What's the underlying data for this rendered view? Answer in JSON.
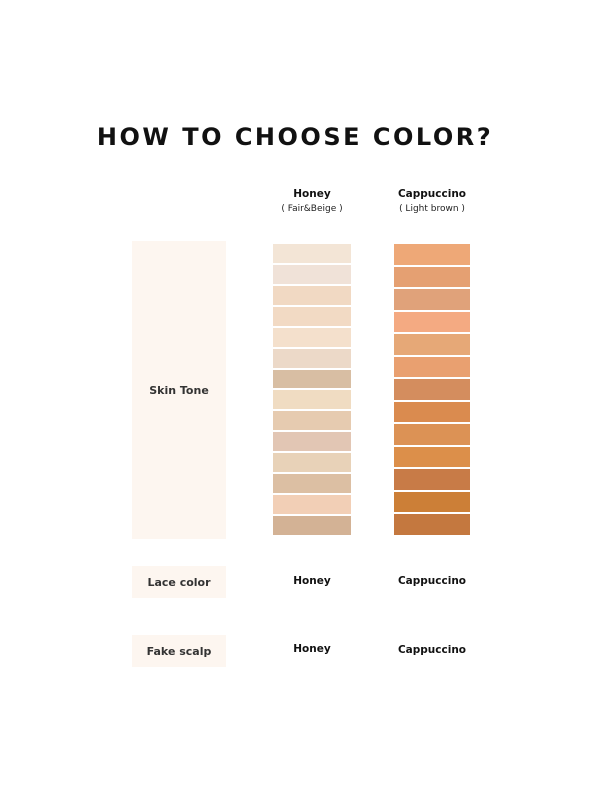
{
  "title": "HOW TO CHOOSE COLOR?",
  "columns": [
    {
      "name": "Honey",
      "sub": "( Fair&Beige )",
      "swatches": [
        "#f3e5d6",
        "#f0e2d8",
        "#f1d9c3",
        "#f2dac4",
        "#f4e0cc",
        "#ecd9c8",
        "#d8bea3",
        "#f0dcc2",
        "#e6cbb0",
        "#e2c6b4",
        "#e8d2b8",
        "#dcbfa3",
        "#f2cfb6",
        "#d3b295"
      ]
    },
    {
      "name": "Cappuccino",
      "sub": "( Light brown )",
      "swatches": [
        "#eea877",
        "#e5a072",
        "#e0a27a",
        "#f4aa82",
        "#e6a877",
        "#e9a070",
        "#d48d5e",
        "#da8b4f",
        "#dc9255",
        "#dc8f4a",
        "#c87b47",
        "#cc7f37",
        "#c4783f"
      ]
    }
  ],
  "rows": {
    "skin_tone": "Skin Tone",
    "lace_color": {
      "label": "Lace color",
      "honey": "Honey",
      "cappuccino": "Cappuccino"
    },
    "fake_scalp": {
      "label": "Fake scalp",
      "honey": "Honey",
      "cappuccino": "Cappuccino"
    }
  }
}
